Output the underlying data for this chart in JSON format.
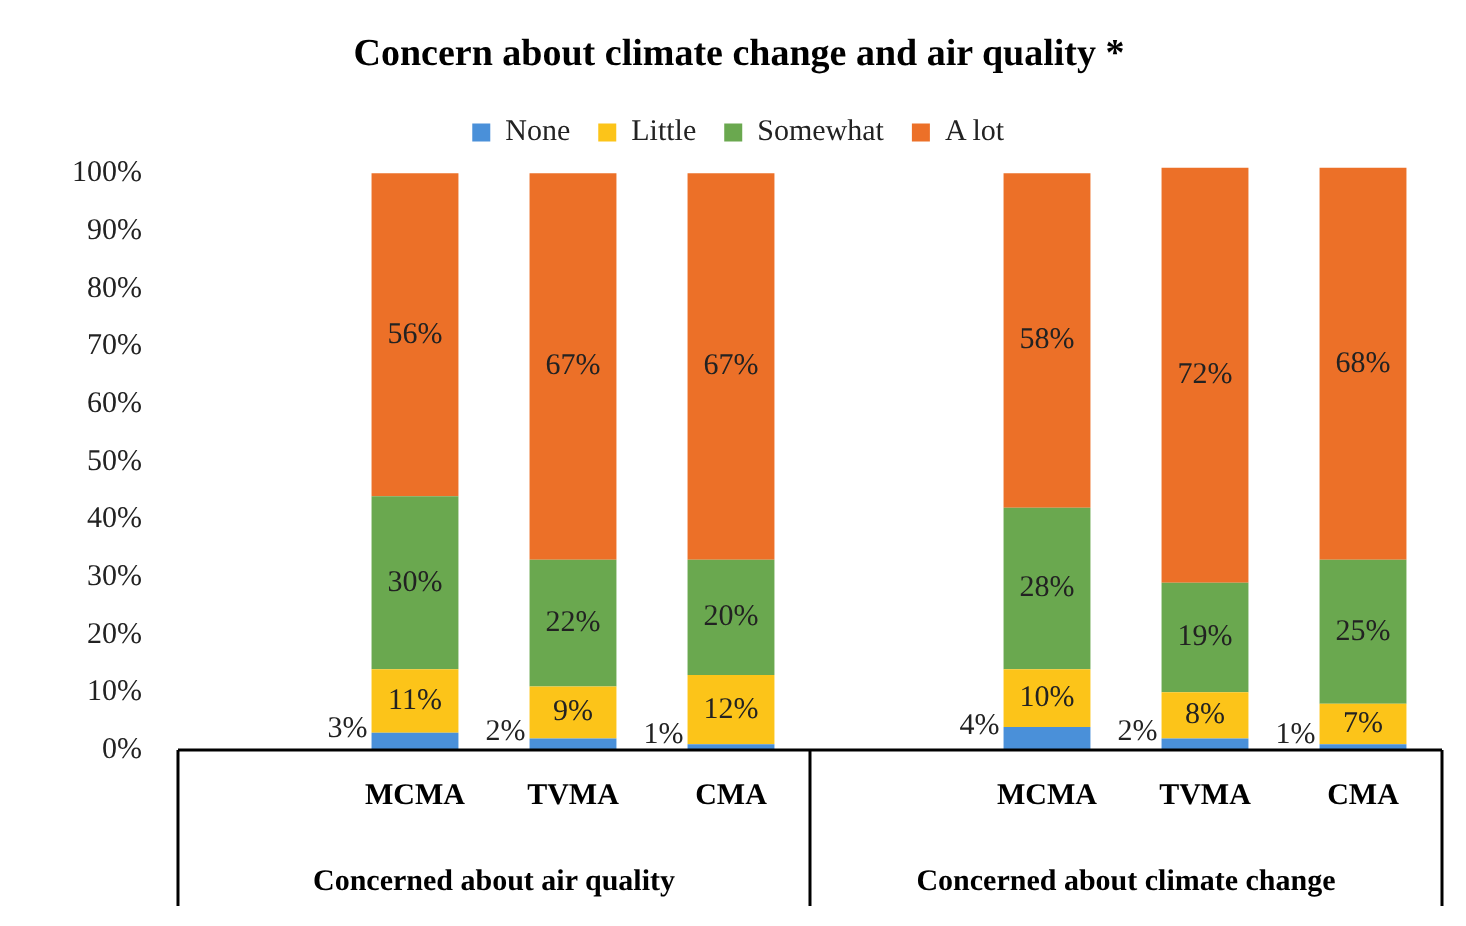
{
  "chart_data": {
    "type": "bar",
    "title": "Concern about climate change and air quality *",
    "stacked": true,
    "legend": "top",
    "grid": false,
    "categories": [
      null,
      "MCMA",
      "TVMA",
      "CMA",
      null,
      "MCMA",
      "TVMA",
      "CMA"
    ],
    "series": [
      {
        "name": "None",
        "color": "#4a90d9",
        "values": [
          null,
          3,
          2,
          1,
          null,
          4,
          2,
          1
        ],
        "value_labels": [
          null,
          "3%",
          "2%",
          "1%",
          null,
          "4%",
          "2%",
          "1%"
        ]
      },
      {
        "name": "Little",
        "color": "#fcc419",
        "values": [
          null,
          11,
          9,
          12,
          null,
          10,
          8,
          7
        ],
        "value_labels": [
          null,
          "11%",
          "9%",
          "12%",
          null,
          "10%",
          "8%",
          "7%"
        ]
      },
      {
        "name": "Somewhat",
        "color": "#6aa84f",
        "values": [
          null,
          30,
          22,
          20,
          null,
          28,
          19,
          25
        ],
        "value_labels": [
          null,
          "30%",
          "22%",
          "20%",
          null,
          "28%",
          "19%",
          "25%"
        ]
      },
      {
        "name": "A lot",
        "color": "#ec7028",
        "values": [
          null,
          56,
          67,
          67,
          null,
          58,
          72,
          68
        ],
        "value_labels": [
          null,
          "56%",
          "67%",
          "67%",
          null,
          "58%",
          "72%",
          "68%"
        ]
      }
    ],
    "ylim": [
      0,
      101
    ],
    "yticks": [
      {
        "value": 0,
        "label": "0%"
      },
      {
        "value": 10,
        "label": "10%"
      },
      {
        "value": 20,
        "label": "20%"
      },
      {
        "value": 30,
        "label": "30%"
      },
      {
        "value": 40,
        "label": "40%"
      },
      {
        "value": 50,
        "label": "50%"
      },
      {
        "value": 60,
        "label": "60%"
      },
      {
        "value": 70,
        "label": "70%"
      },
      {
        "value": 80,
        "label": "80%"
      },
      {
        "value": 90,
        "label": "90%"
      },
      {
        "value": 100,
        "label": "100%"
      }
    ],
    "annotations": [
      "Concerned about air quality",
      "Concerned about climate change"
    ]
  }
}
